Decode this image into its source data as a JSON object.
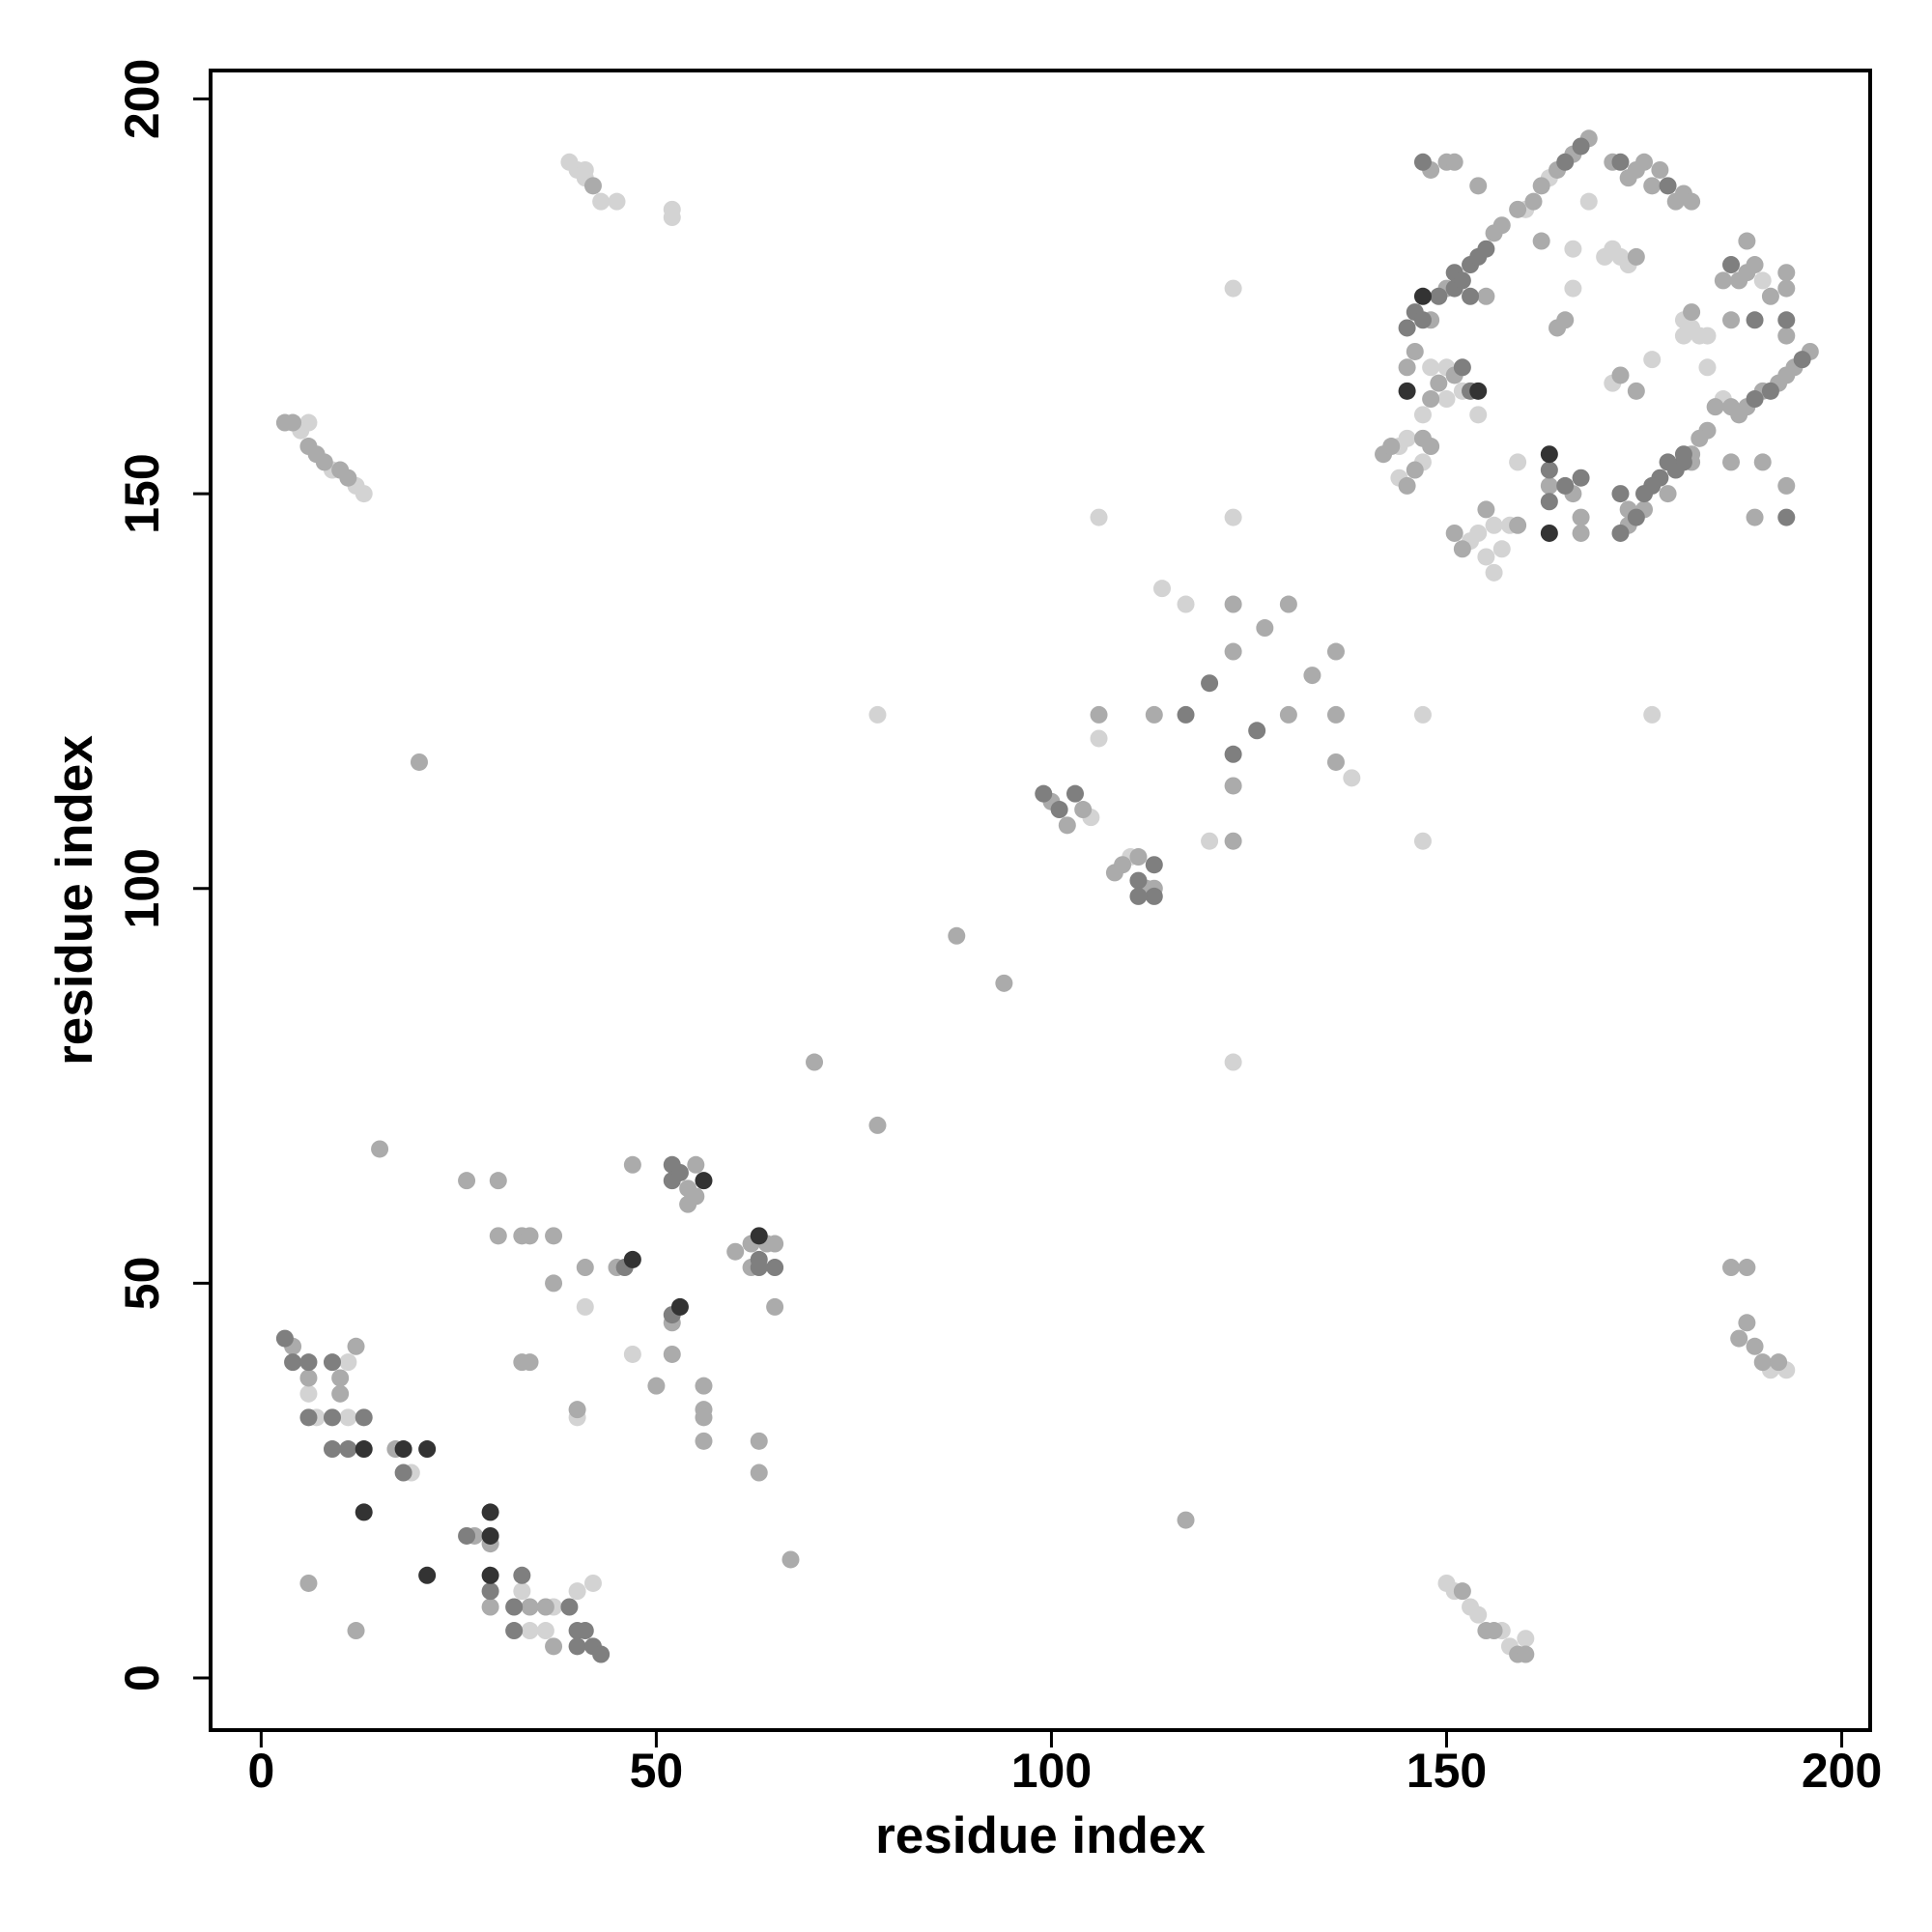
{
  "chart_data": {
    "type": "scatter",
    "xlabel": "residue index",
    "ylabel": "residue index",
    "xlim": [
      -6.4,
      203.6
    ],
    "ylim": [
      -6.6,
      203.6
    ],
    "xticks": [
      0,
      50,
      100,
      150,
      200
    ],
    "yticks": [
      0,
      50,
      100,
      150,
      200
    ],
    "grid": false,
    "series": [
      {
        "color": "#d3d3d3",
        "x": [
          6,
          7,
          11,
          11,
          19,
          33,
          34,
          36,
          40,
          42,
          37,
          41,
          40,
          47,
          78,
          105,
          110,
          106,
          106,
          114,
          117,
          120,
          123,
          123,
          123,
          138,
          147,
          147,
          176,
          5,
          6,
          9,
          12,
          13,
          39,
          40,
          41,
          41,
          43,
          45,
          52,
          52,
          150,
          151,
          153,
          154,
          157,
          158,
          160,
          191,
          193,
          160,
          163,
          168,
          170,
          171,
          172,
          173,
          166,
          166,
          190,
          180,
          181,
          182,
          183,
          180,
          183,
          176,
          171,
          185,
          159,
          156,
          153,
          154,
          155,
          156,
          157,
          158,
          144,
          145,
          144,
          147,
          147,
          150,
          154,
          152,
          148,
          150
        ],
        "y": [
          36,
          33,
          33,
          40,
          26,
          11,
          6,
          6,
          11,
          12,
          9,
          47,
          33,
          41,
          122,
          109,
          104,
          147,
          119,
          138,
          136,
          106,
          176,
          147,
          78,
          114,
          122,
          106,
          122,
          158,
          159,
          153,
          151,
          150,
          192,
          191,
          191,
          190,
          187,
          187,
          186,
          185,
          12,
          11,
          9,
          8,
          6,
          4,
          5,
          39,
          39,
          186,
          190,
          187,
          180,
          181,
          180,
          179,
          181,
          176,
          177,
          172,
          171,
          170,
          170,
          170,
          166,
          167,
          164,
          162,
          154,
          146,
          144,
          145,
          142,
          140,
          143,
          146,
          156,
          157,
          152,
          154,
          160,
          166,
          160,
          163,
          166,
          162
        ]
      },
      {
        "color": "#ababab",
        "x": [
          4,
          6,
          10,
          10,
          12,
          17,
          27,
          29,
          29,
          34,
          36,
          37,
          6,
          12,
          15,
          26,
          30,
          30,
          33,
          34,
          37,
          37,
          41,
          40,
          33,
          34,
          47,
          45,
          52,
          52,
          50,
          54,
          55,
          55,
          54,
          56,
          56,
          56,
          56,
          60,
          62,
          64,
          65,
          62,
          65,
          63,
          63,
          67,
          70,
          78,
          88,
          94,
          20,
          100,
          102,
          104,
          108,
          109,
          111,
          112,
          113,
          106,
          113,
          117,
          123,
          123,
          123,
          123,
          127,
          130,
          130,
          133,
          136,
          136,
          136,
          3,
          4,
          6,
          7,
          8,
          10,
          11,
          42,
          152,
          155,
          156,
          159,
          160,
          186,
          188,
          188,
          187,
          189,
          190,
          192,
          148,
          150,
          151,
          154,
          148,
          150,
          155,
          156,
          157,
          159,
          161,
          162,
          164,
          166,
          168,
          171,
          173,
          174,
          175,
          177,
          176,
          179,
          180,
          181,
          174,
          162,
          164,
          165,
          185,
          187,
          188,
          188,
          189,
          191,
          193,
          193,
          186,
          181,
          172,
          174,
          193,
          194,
          196,
          193,
          192,
          190,
          188,
          187,
          186,
          184,
          183,
          182,
          181,
          175,
          173,
          173,
          178,
          181,
          186,
          190,
          189,
          193,
          163,
          166,
          167,
          167,
          159,
          155,
          151,
          152,
          142,
          143,
          145,
          146,
          148,
          147,
          145,
          146,
          148,
          149,
          151
        ],
        "y": [
          42,
          38,
          38,
          36,
          42,
          29,
          18,
          17,
          9,
          9,
          9,
          4,
          12,
          6,
          67,
          63,
          63,
          56,
          56,
          56,
          56,
          50,
          52,
          34,
          40,
          40,
          65,
          52,
          45,
          41,
          37,
          62,
          65,
          61,
          60,
          37,
          34,
          33,
          30,
          54,
          55,
          55,
          55,
          52,
          47,
          30,
          26,
          15,
          78,
          70,
          94,
          88,
          116,
          111,
          108,
          110,
          102,
          103,
          104,
          100,
          100,
          122,
          122,
          20,
          136,
          130,
          113,
          106,
          133,
          136,
          122,
          127,
          130,
          122,
          116,
          159,
          159,
          156,
          155,
          154,
          153,
          152,
          189,
          11,
          6,
          6,
          3,
          3,
          52,
          52,
          45,
          43,
          42,
          40,
          40,
          191,
          192,
          192,
          189,
          172,
          176,
          175,
          183,
          184,
          186,
          187,
          189,
          191,
          193,
          195,
          192,
          190,
          191,
          192,
          191,
          189,
          187,
          188,
          187,
          180,
          182,
          171,
          172,
          177,
          177,
          182,
          178,
          179,
          175,
          178,
          176,
          172,
          173,
          165,
          163,
          170,
          166,
          168,
          165,
          164,
          163,
          161,
          160,
          161,
          161,
          158,
          157,
          155,
          148,
          146,
          148,
          150,
          154,
          154,
          154,
          147,
          151,
          151,
          150,
          147,
          145,
          146,
          148,
          145,
          143,
          155,
          156,
          151,
          153,
          156,
          157,
          166,
          168,
          162,
          164,
          165
        ]
      },
      {
        "color": "#7f7f7f",
        "x": [
          3,
          4,
          6,
          6,
          9,
          9,
          13,
          9,
          11,
          18,
          26,
          29,
          32,
          33,
          32,
          39,
          40,
          41,
          40,
          42,
          43,
          46,
          52,
          52,
          53,
          52,
          63,
          65,
          63,
          99,
          101,
          103,
          111,
          113,
          113,
          111,
          117,
          120,
          123,
          126,
          147,
          146,
          145,
          147,
          149,
          151,
          151,
          152,
          153,
          154,
          155,
          153,
          165,
          167,
          172,
          178,
          186,
          193,
          189,
          195,
          191,
          189,
          180,
          179,
          178,
          177,
          176,
          175,
          174,
          172,
          172,
          180,
          193,
          163,
          163,
          165,
          167,
          152,
          153
        ],
        "y": [
          43,
          40,
          40,
          33,
          40,
          33,
          33,
          29,
          29,
          26,
          18,
          11,
          9,
          13,
          6,
          9,
          6,
          6,
          4,
          4,
          3,
          52,
          65,
          63,
          64,
          46,
          53,
          52,
          52,
          112,
          110,
          112,
          101,
          99,
          103,
          99,
          122,
          126,
          117,
          120,
          192,
          173,
          171,
          172,
          175,
          176,
          178,
          177,
          179,
          180,
          181,
          175,
          192,
          194,
          192,
          189,
          179,
          172,
          172,
          167,
          163,
          162,
          154,
          153,
          154,
          152,
          151,
          150,
          147,
          145,
          150,
          155,
          147,
          153,
          149,
          151,
          152,
          166,
          163
        ]
      },
      {
        "color": "#333333",
        "x": [
          13,
          18,
          21,
          13,
          21,
          29,
          29,
          29,
          47,
          56,
          53,
          63,
          147,
          163,
          163,
          145,
          154
        ],
        "y": [
          29,
          29,
          29,
          21,
          13,
          21,
          18,
          13,
          53,
          63,
          47,
          56,
          175,
          155,
          145,
          163,
          163
        ]
      }
    ]
  }
}
